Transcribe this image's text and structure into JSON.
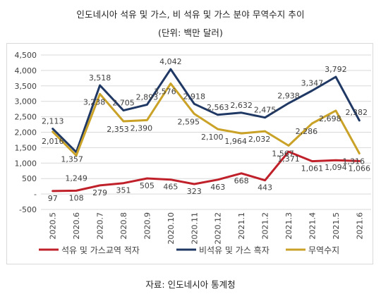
{
  "header": {
    "title": "인도네시아 석유 및 가스, 비 석유 및 가스 분야 무역수지 추이",
    "subtitle": "(단위: 백만 달러)"
  },
  "footer": {
    "source": "자료: 인도네시아 통계청"
  },
  "chart_data": {
    "type": "line",
    "title": "인도네시아 석유 및 가스, 비 석유 및 가스 분야 무역수지 추이",
    "subtitle": "(단위: 백만 달러)",
    "x": [
      "2020.5",
      "2020.6",
      "2020.7",
      "2020.8",
      "2020.9",
      "2020.10",
      "2020.11",
      "2020.12",
      "2021.1",
      "2021.2",
      "2021.3",
      "2021.4",
      "2021.5",
      "2021.6"
    ],
    "ylim": [
      -500,
      4500
    ],
    "yticks": [
      "4,500",
      "4,000",
      "3,500",
      "3,000",
      "2,500",
      "2,000",
      "1,500",
      "1,000",
      "500",
      "-",
      "-500"
    ],
    "grid": true,
    "legend_position": "bottom",
    "series": [
      {
        "name": "석유 및 가스교역 적자",
        "color": "#c0202a",
        "values": [
          97,
          108,
          279,
          351,
          505,
          465,
          323,
          463,
          668,
          443,
          1371,
          1061,
          1094,
          1066
        ],
        "labels": [
          "97",
          "108",
          "279",
          "351",
          "505",
          "465",
          "323",
          "463",
          "668",
          "443",
          "1,371",
          "1,061",
          "1,094",
          "1,066"
        ]
      },
      {
        "name": "비석유 및 가스 흑자",
        "color": "#1f3864",
        "values": [
          2113,
          1357,
          3518,
          2705,
          2893,
          4042,
          2918,
          2563,
          2632,
          2475,
          2938,
          3347,
          3792,
          2382
        ],
        "labels": [
          "2,113",
          "1,357",
          "3,518",
          "2,705",
          "2,893",
          "4,042",
          "2,918",
          "2,563",
          "2,632",
          "2,475",
          "2,938",
          "3,347",
          "3,792",
          "2,382"
        ]
      },
      {
        "name": "무역수지",
        "color": "#c9a227",
        "values": [
          2016,
          1249,
          3238,
          2353,
          2390,
          3576,
          2595,
          2100,
          1964,
          2032,
          1567,
          2286,
          2698,
          1316
        ],
        "labels": [
          "2,016",
          "1,249",
          "3,238",
          "2,353",
          "2,390",
          "3,576",
          "2,595",
          "2,100",
          "1,964",
          "2,032",
          "1,567",
          "2,286",
          "2,698",
          "1,316"
        ]
      }
    ]
  }
}
